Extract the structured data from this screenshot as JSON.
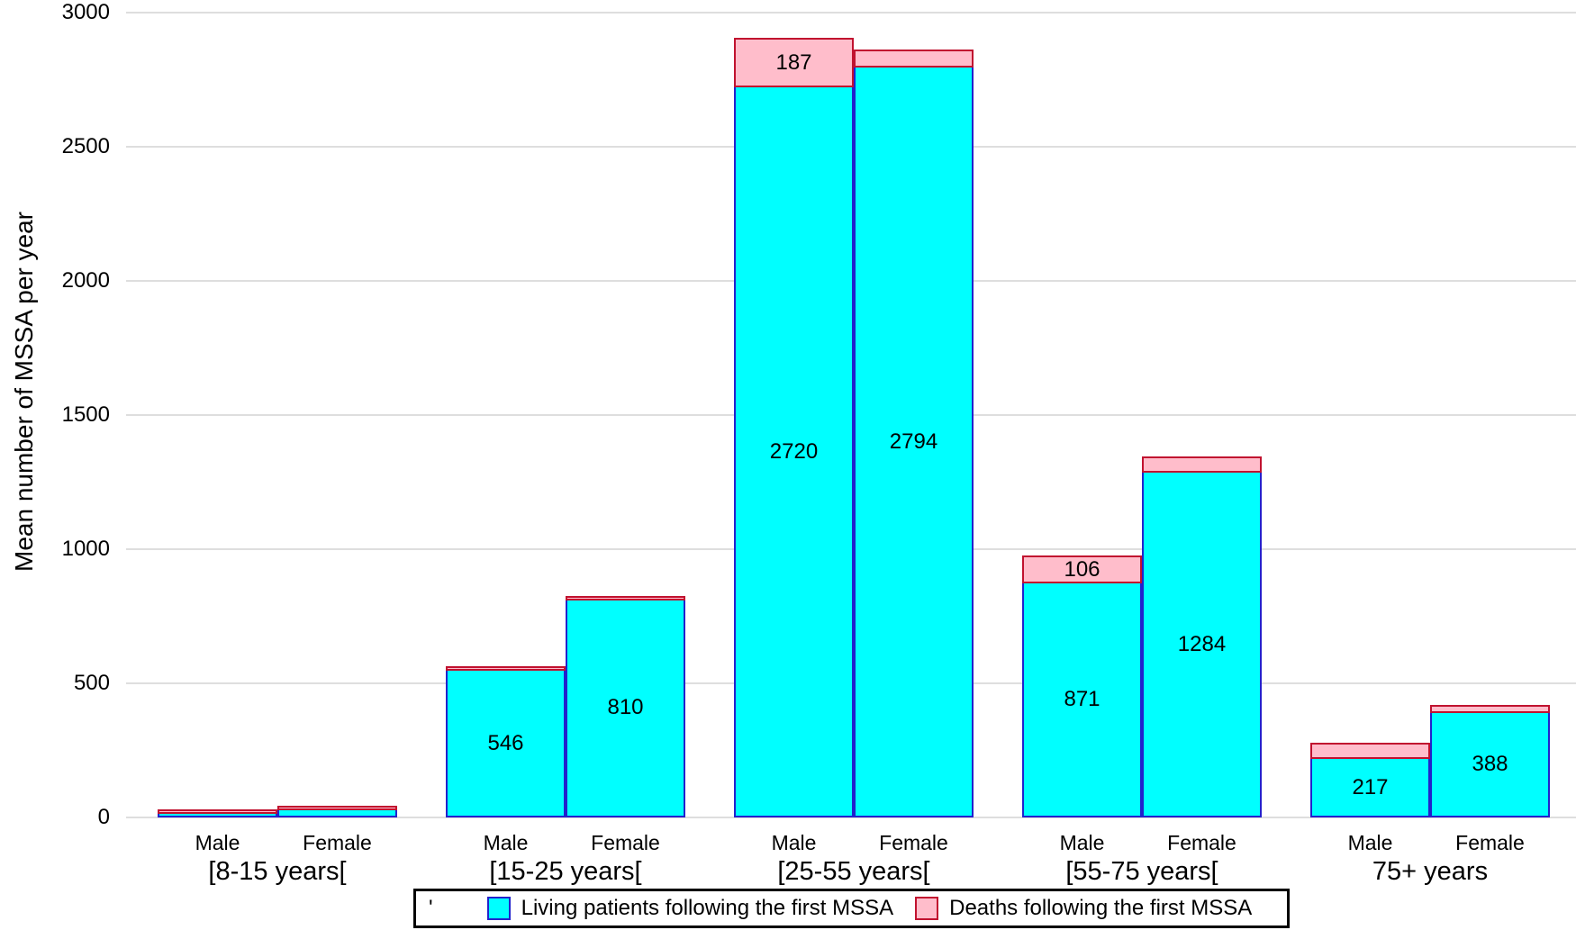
{
  "chart_data": {
    "type": "bar",
    "stacked": true,
    "title": "",
    "xlabel": "",
    "ylabel": "Mean number of MSSA per year",
    "ylim": [
      0,
      3000
    ],
    "yticks": [
      0,
      500,
      1000,
      1500,
      2000,
      2500,
      3000
    ],
    "ytick_labels": [
      "0",
      "500",
      "1000",
      "1500",
      "2000",
      "2500",
      "3000"
    ],
    "grid": true,
    "colors": {
      "living_fill": "#00FFFF",
      "living_border": "#2222CC",
      "death_fill": "#FFBDCB",
      "death_border": "#C1122F",
      "gridline": "#DEDEDE",
      "text": "#000000"
    },
    "series": [
      {
        "name": "Living patients following the first MSSA",
        "color": "#00FFFF",
        "border": "#2222CC"
      },
      {
        "name": "Deaths following the first MSSA",
        "color": "#FFBDCB",
        "border": "#C1122F"
      }
    ],
    "legend": {
      "position": "bottom",
      "prefix_char": "'"
    },
    "groups": [
      {
        "label": "[8-15 years[",
        "bars": [
          {
            "sex": "Male",
            "living": 5,
            "deaths": 3,
            "living_label": "",
            "deaths_label": ""
          },
          {
            "sex": "Female",
            "living": 26,
            "deaths": 8,
            "living_label": "",
            "deaths_label": ""
          }
        ]
      },
      {
        "label": "[15-25 years[",
        "bars": [
          {
            "sex": "Male",
            "living": 546,
            "deaths": 15,
            "living_label": "546",
            "deaths_label": ""
          },
          {
            "sex": "Female",
            "living": 810,
            "deaths": 15,
            "living_label": "810",
            "deaths_label": ""
          }
        ]
      },
      {
        "label": "[25-55 years[",
        "bars": [
          {
            "sex": "Male",
            "living": 2720,
            "deaths": 187,
            "living_label": "2720",
            "deaths_label": "187"
          },
          {
            "sex": "Female",
            "living": 2794,
            "deaths": 70,
            "living_label": "2794",
            "deaths_label": ""
          }
        ]
      },
      {
        "label": "[55-75 years[",
        "bars": [
          {
            "sex": "Male",
            "living": 871,
            "deaths": 106,
            "living_label": "871",
            "deaths_label": "106"
          },
          {
            "sex": "Female",
            "living": 1284,
            "deaths": 60,
            "living_label": "1284",
            "deaths_label": ""
          }
        ]
      },
      {
        "label": "75+ years",
        "bars": [
          {
            "sex": "Male",
            "living": 217,
            "deaths": 60,
            "living_label": "217",
            "deaths_label": ""
          },
          {
            "sex": "Female",
            "living": 388,
            "deaths": 30,
            "living_label": "388",
            "deaths_label": ""
          }
        ]
      }
    ]
  }
}
